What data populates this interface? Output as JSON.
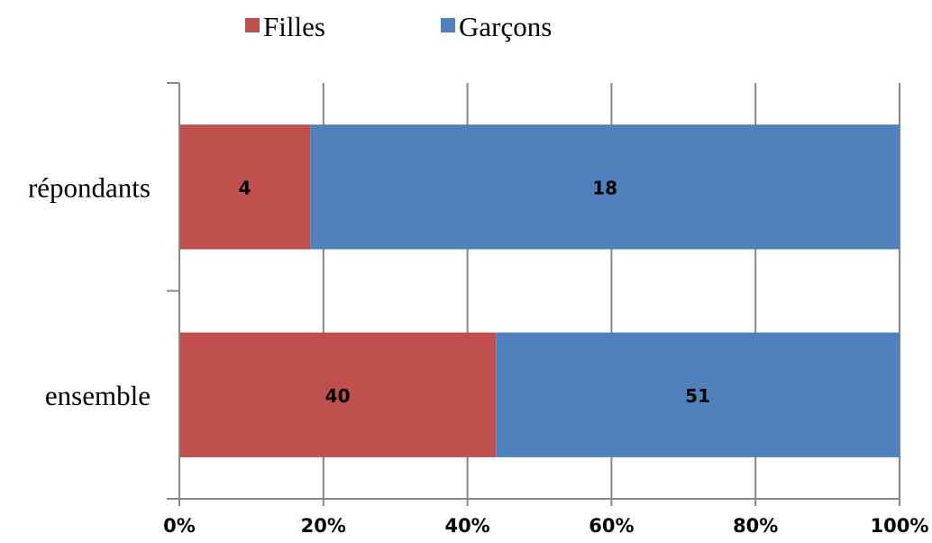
{
  "chart_data": {
    "type": "bar",
    "orientation": "horizontal",
    "stacked": "percent",
    "categories": [
      "répondants",
      "ensemble"
    ],
    "series": [
      {
        "name": "Filles",
        "values": [
          4,
          40
        ],
        "color": "#c0504d"
      },
      {
        "name": "Garçons",
        "values": [
          18,
          51
        ],
        "color": "#4f81bd"
      }
    ],
    "x_ticks": [
      "0%",
      "20%",
      "40%",
      "60%",
      "80%",
      "100%"
    ],
    "xlim": [
      0,
      100
    ],
    "grid": true,
    "legend_position": "top"
  }
}
